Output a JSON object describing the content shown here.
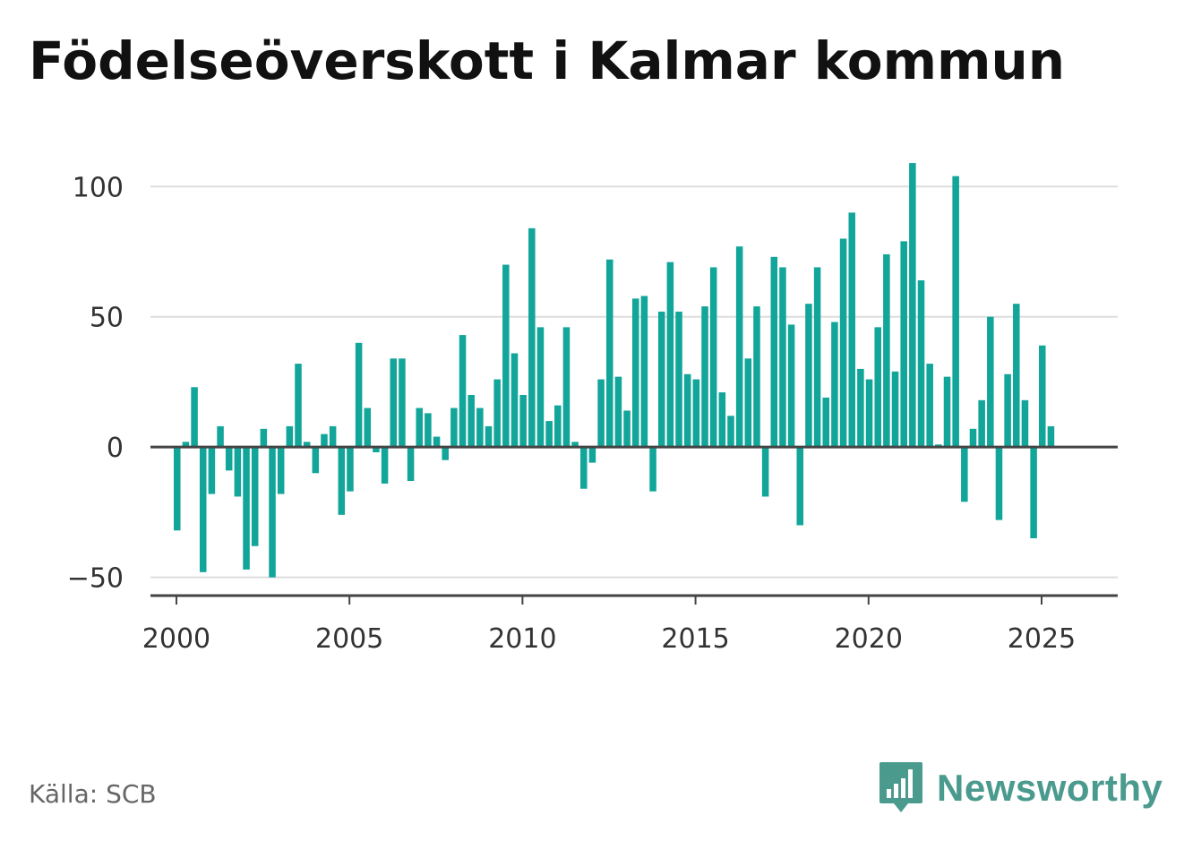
{
  "title": "Födelseöverskott i Kalmar kommun",
  "source": "Källa: SCB",
  "brand": {
    "name": "Newsworthy",
    "icon": "newsworthy-logo-icon",
    "color": "#4a9a8e"
  },
  "colors": {
    "bar": "#12a59a",
    "grid": "#dddddd",
    "axis": "#444444"
  },
  "chart_data": {
    "type": "bar",
    "title": "Födelseöverskott i Kalmar kommun",
    "xlabel": "",
    "ylabel": "",
    "ylim": [
      -57,
      108
    ],
    "xlim": [
      1999.25,
      2027.2
    ],
    "y_ticks": [
      100,
      50,
      0,
      -50
    ],
    "y_tick_labels": [
      "100",
      "50",
      "0",
      "−50"
    ],
    "x_ticks": [
      2000,
      2005,
      2010,
      2015,
      2020,
      2025
    ],
    "x_tick_labels": [
      "2000",
      "2005",
      "2010",
      "2015",
      "2020",
      "2025"
    ],
    "grid": "horizontal",
    "frequency": "monthly, every third month (quarterly)",
    "x_start": "2000 Q1",
    "values": [
      -32,
      2,
      23,
      -48,
      -18,
      8,
      -9,
      -19,
      -47,
      -38,
      7,
      -50,
      -18,
      8,
      32,
      2,
      -10,
      5,
      8,
      -26,
      -17,
      40,
      15,
      -2,
      -14,
      34,
      34,
      -13,
      15,
      13,
      4,
      -5,
      15,
      43,
      20,
      15,
      8,
      26,
      70,
      36,
      20,
      84,
      46,
      10,
      16,
      46,
      2,
      -16,
      -6,
      26,
      72,
      27,
      14,
      57,
      58,
      -17,
      52,
      71,
      52,
      28,
      26,
      54,
      69,
      21,
      12,
      77,
      34,
      54,
      -19,
      73,
      69,
      47,
      -30,
      55,
      69,
      19,
      48,
      80,
      90,
      30,
      26,
      46,
      74,
      29,
      79,
      109,
      64,
      32,
      1,
      27,
      104,
      -21,
      7,
      18,
      50,
      -28,
      28,
      55,
      18,
      -35,
      39,
      8
    ]
  }
}
